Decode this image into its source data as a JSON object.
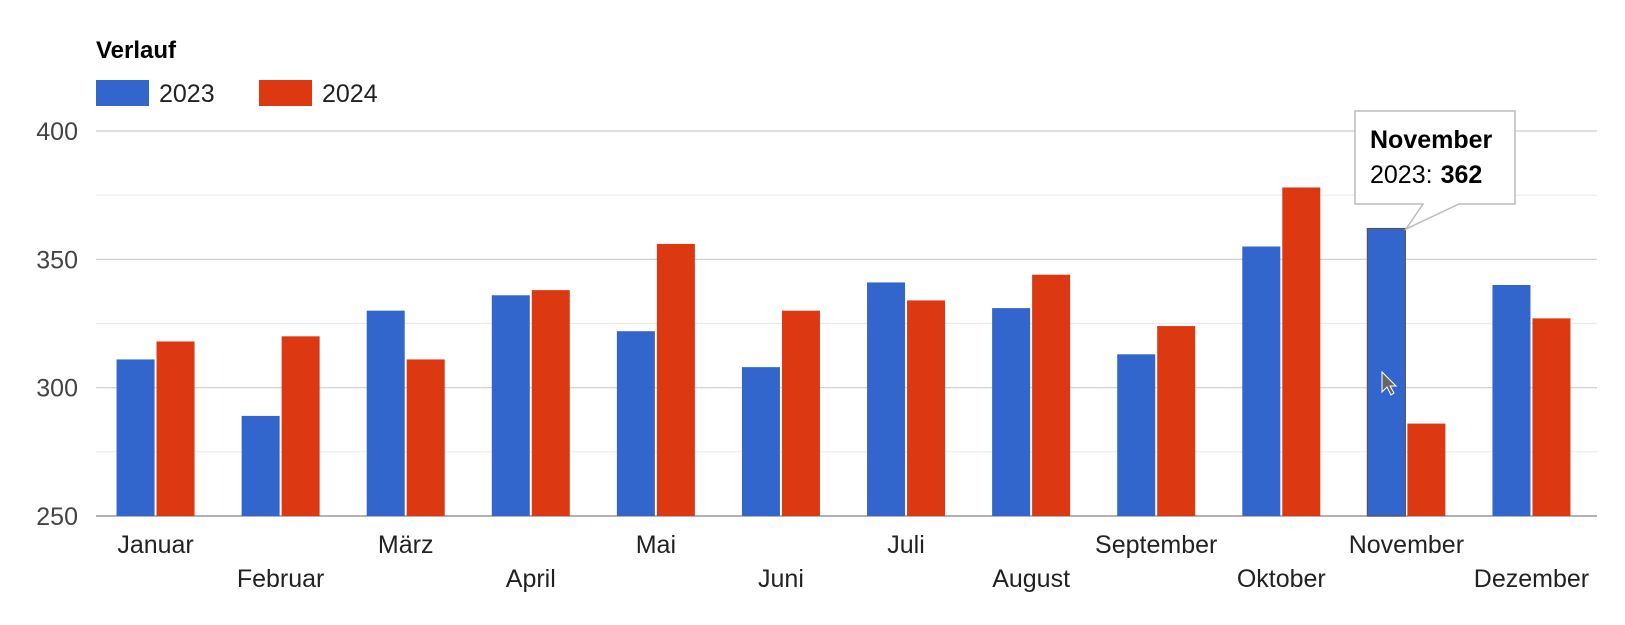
{
  "chart_data": {
    "type": "bar",
    "title": "Verlauf",
    "legend_position": "top-left",
    "categories": [
      "Januar",
      "Februar",
      "März",
      "April",
      "Mai",
      "Juni",
      "Juli",
      "August",
      "September",
      "Oktober",
      "November",
      "Dezember"
    ],
    "series": [
      {
        "name": "2023",
        "color": "#3366cc",
        "values": [
          311,
          289,
          330,
          336,
          322,
          308,
          341,
          331,
          313,
          355,
          362,
          340
        ]
      },
      {
        "name": "2024",
        "color": "#dc3912",
        "values": [
          318,
          320,
          311,
          338,
          356,
          330,
          334,
          344,
          324,
          378,
          286,
          327
        ]
      }
    ],
    "ylim": [
      250,
      400
    ],
    "yticks": [
      "250",
      "300",
      "350",
      "400"
    ],
    "grid": true,
    "tooltip": {
      "category": "November",
      "series_label": "2023:",
      "value": "362"
    }
  }
}
